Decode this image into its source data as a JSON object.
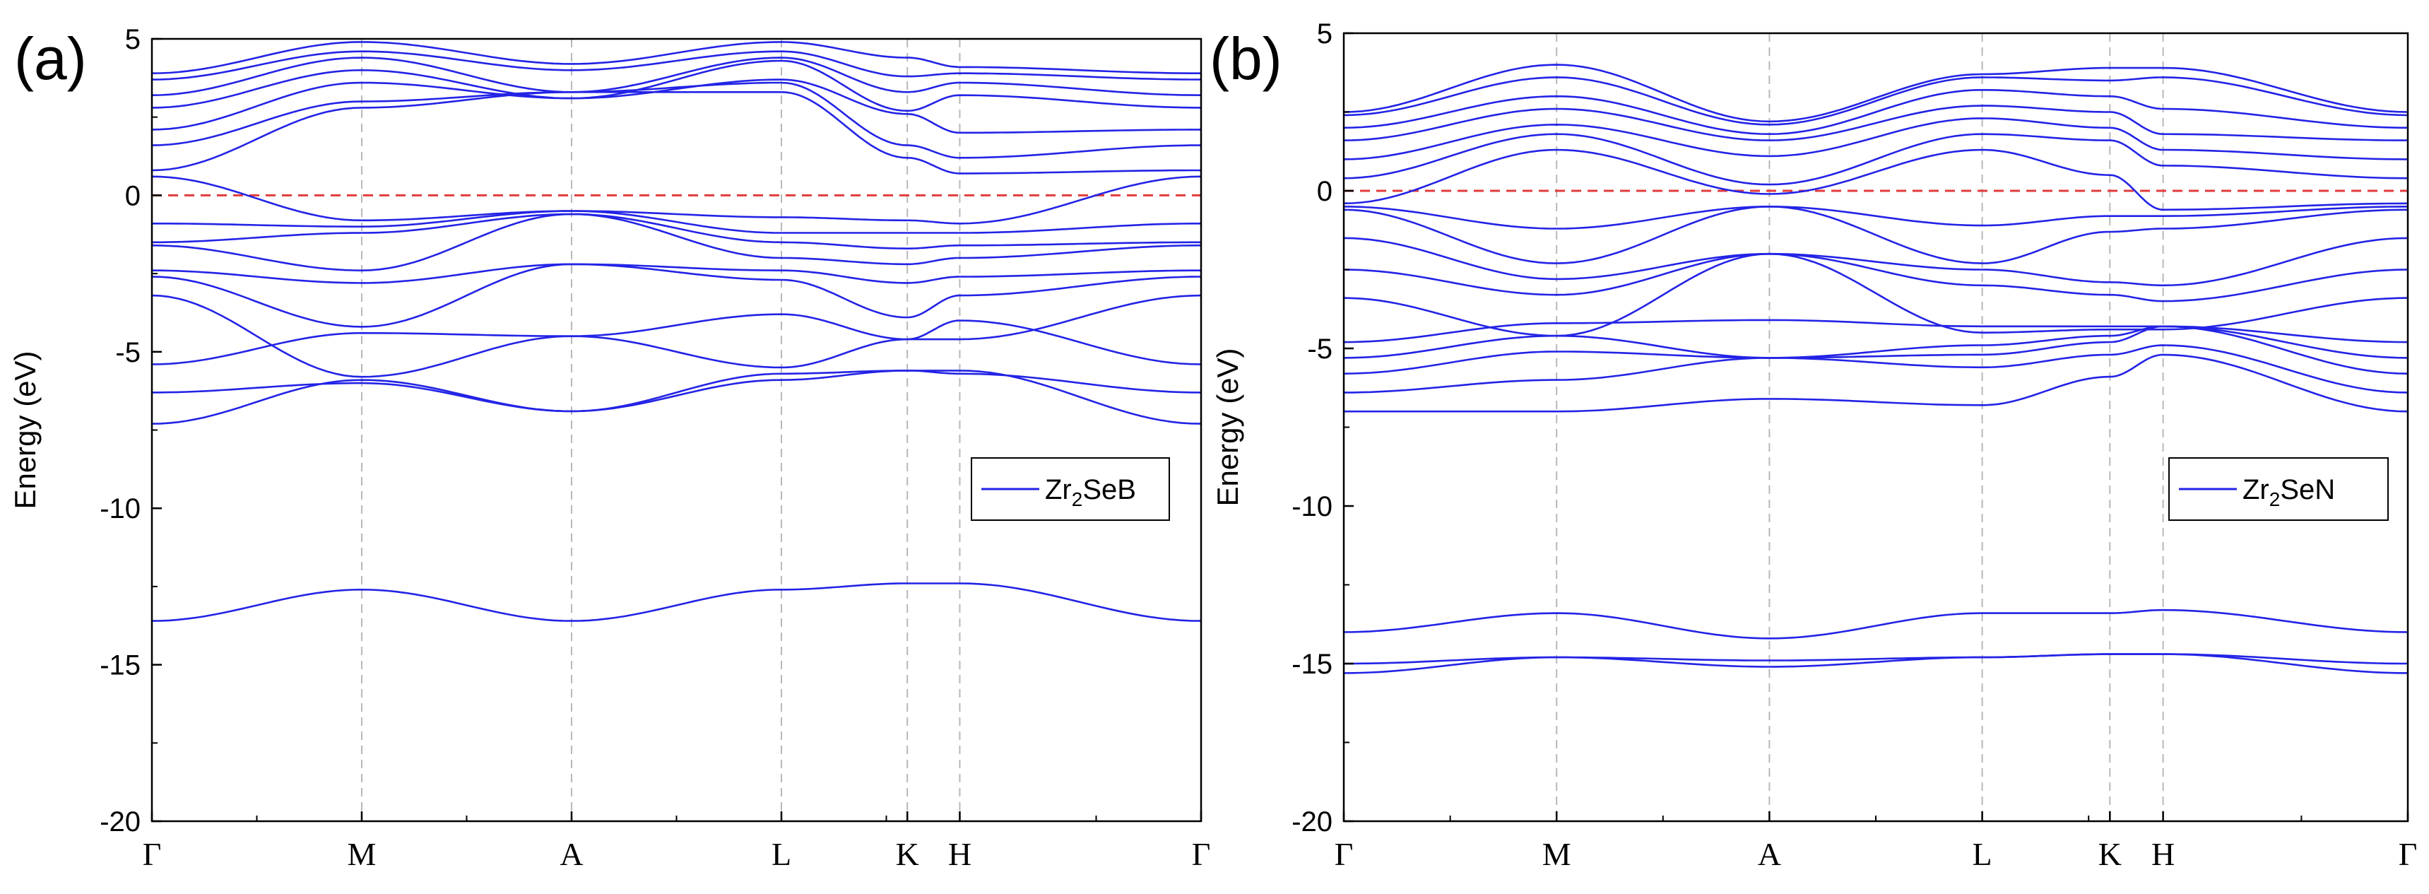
{
  "colors": {
    "band": "#2323e6",
    "fermi": "#e23b3b",
    "kline": "#b8b8b8",
    "axis": "#000000"
  },
  "chart_data": [
    {
      "panel": "(a)",
      "type": "line",
      "title": "",
      "xlabel": "",
      "ylabel": "Energy (eV)",
      "ylim": [
        -20,
        5
      ],
      "yticks": [
        5,
        0,
        -5,
        -10,
        -15,
        -20
      ],
      "kpath": [
        {
          "label": "Γ",
          "pos": 0
        },
        {
          "label": "M",
          "pos": 2.0
        },
        {
          "label": "A",
          "pos": 4.0
        },
        {
          "label": "L",
          "pos": 6.0
        },
        {
          "label": "K",
          "pos": 7.2
        },
        {
          "label": "H",
          "pos": 7.7
        },
        {
          "label": "Γ",
          "pos": 10.0
        }
      ],
      "fermi_level": 0,
      "legend": {
        "base": "Zr",
        "sub": "2",
        "rest": "SeB",
        "placement": "right"
      },
      "series": [
        {
          "name": "b1",
          "values": [
            -13.6,
            -12.6,
            -13.6,
            -12.6,
            -12.4,
            -12.4,
            -13.6
          ]
        },
        {
          "name": "b2",
          "values": [
            -7.3,
            -5.9,
            -6.9,
            -5.9,
            -5.6,
            -5.6,
            -7.3
          ]
        },
        {
          "name": "b3",
          "values": [
            -6.3,
            -6.0,
            -6.9,
            -5.7,
            -5.6,
            -5.7,
            -6.3
          ]
        },
        {
          "name": "b4",
          "values": [
            -5.4,
            -4.4,
            -4.5,
            -3.8,
            -4.6,
            -4.0,
            -5.4
          ]
        },
        {
          "name": "b5",
          "values": [
            -3.2,
            -5.8,
            -4.5,
            -5.5,
            -4.6,
            -4.6,
            -3.2
          ]
        },
        {
          "name": "b6",
          "values": [
            -2.6,
            -4.2,
            -2.2,
            -2.7,
            -3.9,
            -3.2,
            -2.6
          ]
        },
        {
          "name": "b7",
          "values": [
            -2.4,
            -2.8,
            -2.2,
            -2.4,
            -2.8,
            -2.6,
            -2.4
          ]
        },
        {
          "name": "b8",
          "values": [
            -1.6,
            -2.4,
            -0.6,
            -2.0,
            -2.2,
            -2.0,
            -1.6
          ]
        },
        {
          "name": "b9",
          "values": [
            -1.5,
            -1.2,
            -0.6,
            -1.5,
            -1.7,
            -1.6,
            -1.5
          ]
        },
        {
          "name": "b10",
          "values": [
            -0.9,
            -1.0,
            -0.5,
            -1.2,
            -1.2,
            -1.2,
            -0.9
          ]
        },
        {
          "name": "b11",
          "values": [
            0.6,
            -0.8,
            -0.5,
            -0.7,
            -0.8,
            -0.9,
            0.6
          ]
        },
        {
          "name": "b12",
          "values": [
            0.8,
            2.8,
            3.3,
            3.3,
            1.2,
            0.7,
            0.8
          ]
        },
        {
          "name": "b13",
          "values": [
            1.6,
            3.0,
            3.3,
            3.6,
            1.6,
            1.2,
            1.6
          ]
        },
        {
          "name": "b14",
          "values": [
            2.1,
            3.6,
            3.1,
            3.7,
            2.6,
            2.0,
            2.1
          ]
        },
        {
          "name": "b15",
          "values": [
            2.8,
            4.0,
            3.1,
            4.3,
            2.7,
            3.2,
            2.8
          ]
        },
        {
          "name": "b16",
          "values": [
            3.2,
            4.4,
            3.3,
            4.4,
            3.3,
            3.6,
            3.2
          ]
        },
        {
          "name": "b17",
          "values": [
            3.7,
            4.6,
            4.0,
            4.6,
            3.8,
            3.9,
            3.7
          ]
        },
        {
          "name": "b18",
          "values": [
            3.9,
            4.9,
            4.2,
            4.9,
            4.4,
            4.1,
            3.9
          ]
        }
      ]
    },
    {
      "panel": "(b)",
      "type": "line",
      "title": "",
      "xlabel": "",
      "ylabel": "Energy (eV)",
      "ylim": [
        -20,
        5
      ],
      "yticks": [
        5,
        0,
        -5,
        -10,
        -15,
        -20
      ],
      "kpath": [
        {
          "label": "Γ",
          "pos": 0
        },
        {
          "label": "M",
          "pos": 2.0
        },
        {
          "label": "A",
          "pos": 4.0
        },
        {
          "label": "L",
          "pos": 6.0
        },
        {
          "label": "K",
          "pos": 7.2
        },
        {
          "label": "H",
          "pos": 7.7
        },
        {
          "label": "Γ",
          "pos": 10.0
        }
      ],
      "fermi_level": 0,
      "legend": {
        "base": "Zr",
        "sub": "2",
        "rest": "SeN",
        "placement": "right"
      },
      "series": [
        {
          "name": "b1",
          "values": [
            -15.3,
            -14.8,
            -15.1,
            -14.8,
            -14.7,
            -14.7,
            -15.3
          ]
        },
        {
          "name": "b2",
          "values": [
            -15.0,
            -14.8,
            -14.9,
            -14.8,
            -14.7,
            -14.7,
            -15.0
          ]
        },
        {
          "name": "b3",
          "values": [
            -14.0,
            -13.4,
            -14.2,
            -13.4,
            -13.4,
            -13.3,
            -14.0
          ]
        },
        {
          "name": "b4",
          "values": [
            -7.0,
            -7.0,
            -6.6,
            -6.8,
            -5.9,
            -5.2,
            -7.0
          ]
        },
        {
          "name": "b5",
          "values": [
            -6.4,
            -6.0,
            -5.3,
            -5.6,
            -5.2,
            -4.9,
            -6.4
          ]
        },
        {
          "name": "b6",
          "values": [
            -5.8,
            -5.1,
            -5.3,
            -5.2,
            -4.8,
            -4.3,
            -5.8
          ]
        },
        {
          "name": "b7",
          "values": [
            -5.3,
            -4.6,
            -5.3,
            -4.9,
            -4.6,
            -4.3,
            -5.3
          ]
        },
        {
          "name": "b8",
          "values": [
            -4.8,
            -4.2,
            -4.1,
            -4.3,
            -4.3,
            -4.3,
            -4.8
          ]
        },
        {
          "name": "b9",
          "values": [
            -3.4,
            -4.6,
            -2.0,
            -4.5,
            -4.4,
            -4.4,
            -3.4
          ]
        },
        {
          "name": "b10",
          "values": [
            -2.5,
            -3.3,
            -2.0,
            -3.0,
            -3.3,
            -3.5,
            -2.5
          ]
        },
        {
          "name": "b11",
          "values": [
            -1.5,
            -2.8,
            -2.0,
            -2.5,
            -2.9,
            -3.0,
            -1.5
          ]
        },
        {
          "name": "b12",
          "values": [
            -0.6,
            -2.3,
            -0.5,
            -2.3,
            -1.3,
            -1.2,
            -0.6
          ]
        },
        {
          "name": "b13",
          "values": [
            -0.5,
            -1.2,
            -0.5,
            -1.1,
            -0.8,
            -0.8,
            -0.5
          ]
        },
        {
          "name": "b14",
          "values": [
            -0.4,
            1.3,
            -0.1,
            1.3,
            0.5,
            -0.6,
            -0.4
          ]
        },
        {
          "name": "b15",
          "values": [
            0.4,
            1.8,
            0.2,
            1.8,
            1.6,
            0.8,
            0.4
          ]
        },
        {
          "name": "b16",
          "values": [
            1.0,
            2.1,
            1.1,
            2.3,
            2.0,
            1.3,
            1.0
          ]
        },
        {
          "name": "b17",
          "values": [
            1.6,
            2.6,
            1.6,
            2.7,
            2.5,
            1.8,
            1.6
          ]
        },
        {
          "name": "b18",
          "values": [
            2.0,
            3.0,
            1.8,
            3.2,
            3.0,
            2.6,
            2.0
          ]
        },
        {
          "name": "b19",
          "values": [
            2.4,
            3.6,
            2.1,
            3.6,
            3.5,
            3.6,
            2.4
          ]
        },
        {
          "name": "b20",
          "values": [
            2.5,
            4.0,
            2.2,
            3.7,
            3.9,
            3.9,
            2.5
          ]
        }
      ]
    }
  ]
}
